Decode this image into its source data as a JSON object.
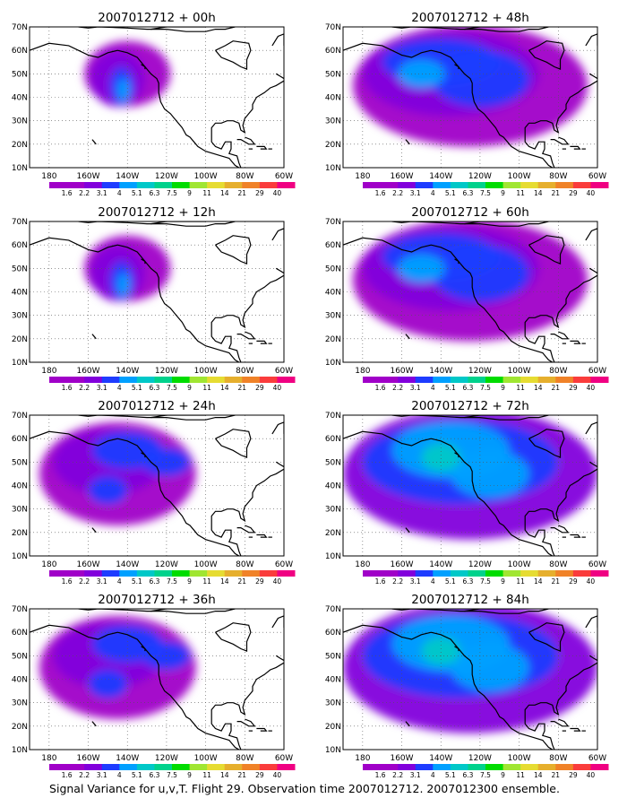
{
  "caption": "Signal Variance for u,v,T. Flight 29. Observation time 2007012712. 2007012300 ensemble.",
  "lon_labels": [
    "180",
    "160W",
    "140W",
    "120W",
    "100W",
    "80W",
    "60W"
  ],
  "lat_labels": [
    "70N",
    "60N",
    "50N",
    "40N",
    "30N",
    "20N",
    "10N"
  ],
  "colorbar": {
    "labels": [
      "1.6",
      "2.2",
      "3.1",
      "4",
      "5.1",
      "6.3",
      "7.5",
      "9",
      "11",
      "14",
      "21",
      "29",
      "40"
    ],
    "colors": [
      "#a000c8",
      "#8200dc",
      "#1e3cff",
      "#00a0ff",
      "#00c8c8",
      "#00d28c",
      "#00dc00",
      "#a0e632",
      "#e6dc32",
      "#e6af2d",
      "#f08228",
      "#fa3c3c",
      "#f00082"
    ]
  },
  "panels": [
    {
      "title": "2007012712 + 00h",
      "fill_level": 1
    },
    {
      "title": "2007012712 + 48h",
      "fill_level": 3
    },
    {
      "title": "2007012712 + 12h",
      "fill_level": 1
    },
    {
      "title": "2007012712 + 60h",
      "fill_level": 3
    },
    {
      "title": "2007012712 + 24h",
      "fill_level": 2
    },
    {
      "title": "2007012712 + 72h",
      "fill_level": 4
    },
    {
      "title": "2007012712 + 36h",
      "fill_level": 2
    },
    {
      "title": "2007012712 + 84h",
      "fill_level": 4
    }
  ]
}
